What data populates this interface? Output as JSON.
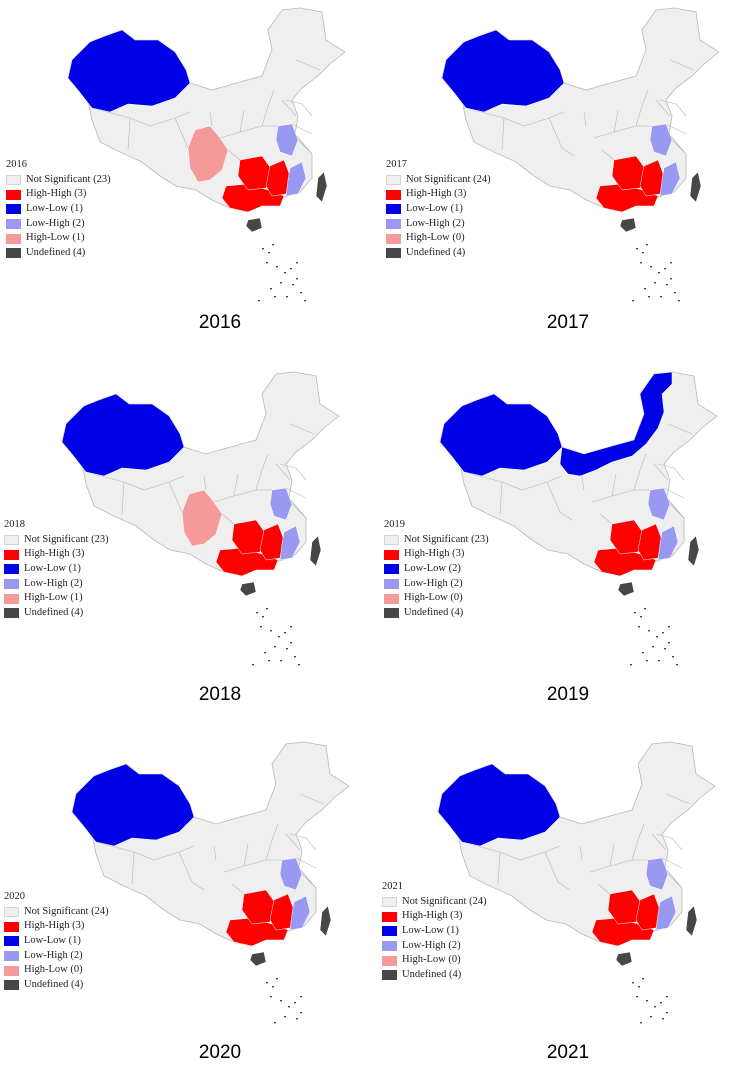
{
  "colors": {
    "not_significant": "#efefef",
    "high_high": "#ff0000",
    "low_low": "#0000e6",
    "low_high": "#9999f2",
    "high_low": "#f59a9a",
    "undefined": "#474747",
    "border": "#b8b8b8"
  },
  "panels": [
    {
      "year": "2016",
      "legend_title": "2016",
      "categories": [
        {
          "label": "Not Significant (23)",
          "key": "not_significant"
        },
        {
          "label": "High-High (3)",
          "key": "high_high"
        },
        {
          "label": "Low-Low (1)",
          "key": "low_low"
        },
        {
          "label": "Low-High (2)",
          "key": "low_high"
        },
        {
          "label": "High-Low (1)",
          "key": "high_low"
        },
        {
          "label": "Undefined (4)",
          "key": "undefined"
        }
      ],
      "caption": "2016",
      "regions": {
        "xinjiang": "low_low",
        "sichuan": "high_low",
        "guangxi": "high_high",
        "hunan": "high_high",
        "jiangxi": "high_high",
        "anhui": "low_high",
        "fujian": "low_high",
        "taiwan": "undefined",
        "hainan": "undefined",
        "south_islands": "undefined"
      }
    },
    {
      "year": "2017",
      "legend_title": "2017",
      "categories": [
        {
          "label": "Not Significant (24)",
          "key": "not_significant"
        },
        {
          "label": "High-High (3)",
          "key": "high_high"
        },
        {
          "label": "Low-Low (1)",
          "key": "low_low"
        },
        {
          "label": "Low-High (2)",
          "key": "low_high"
        },
        {
          "label": "High-Low (0)",
          "key": "high_low"
        },
        {
          "label": "Undefined (4)",
          "key": "undefined"
        }
      ],
      "caption": "2017",
      "regions": {
        "xinjiang": "low_low",
        "guangxi": "high_high",
        "hunan": "high_high",
        "jiangxi": "high_high",
        "anhui": "low_high",
        "fujian": "low_high",
        "taiwan": "undefined",
        "hainan": "undefined",
        "south_islands": "undefined"
      }
    },
    {
      "year": "2018",
      "legend_title": "2018",
      "categories": [
        {
          "label": "Not Significant (23)",
          "key": "not_significant"
        },
        {
          "label": "High-High (3)",
          "key": "high_high"
        },
        {
          "label": "Low-Low (1)",
          "key": "low_low"
        },
        {
          "label": "Low-High (2)",
          "key": "low_high"
        },
        {
          "label": "High-Low (1)",
          "key": "high_low"
        },
        {
          "label": "Undefined (4)",
          "key": "undefined"
        }
      ],
      "caption": "2018",
      "regions": {
        "xinjiang": "low_low",
        "sichuan": "high_low",
        "guangxi": "high_high",
        "hunan": "high_high",
        "jiangxi": "high_high",
        "anhui": "low_high",
        "fujian": "low_high",
        "taiwan": "undefined",
        "hainan": "undefined",
        "south_islands": "undefined"
      }
    },
    {
      "year": "2019",
      "legend_title": "2019",
      "categories": [
        {
          "label": "Not Significant (23)",
          "key": "not_significant"
        },
        {
          "label": "High-High (3)",
          "key": "high_high"
        },
        {
          "label": "Low-Low (2)",
          "key": "low_low"
        },
        {
          "label": "Low-High (2)",
          "key": "low_high"
        },
        {
          "label": "High-Low (0)",
          "key": "high_low"
        },
        {
          "label": "Undefined (4)",
          "key": "undefined"
        }
      ],
      "caption": "2019",
      "regions": {
        "xinjiang": "low_low",
        "inner_mongolia": "low_low",
        "guangxi": "high_high",
        "hunan": "high_high",
        "jiangxi": "high_high",
        "anhui": "low_high",
        "fujian": "low_high",
        "taiwan": "undefined",
        "hainan": "undefined",
        "south_islands": "undefined"
      }
    },
    {
      "year": "2020",
      "legend_title": "2020",
      "categories": [
        {
          "label": "Not Significant (24)",
          "key": "not_significant"
        },
        {
          "label": "High-High (3)",
          "key": "high_high"
        },
        {
          "label": "Low-Low (1)",
          "key": "low_low"
        },
        {
          "label": "Low-High (2)",
          "key": "low_high"
        },
        {
          "label": "High-Low (0)",
          "key": "high_low"
        },
        {
          "label": "Undefined (4)",
          "key": "undefined"
        }
      ],
      "caption": "2020",
      "regions": {
        "xinjiang": "low_low",
        "guangxi": "high_high",
        "hunan": "high_high",
        "jiangxi": "high_high",
        "anhui": "low_high",
        "fujian": "low_high",
        "taiwan": "undefined",
        "hainan": "undefined",
        "south_islands": "undefined"
      }
    },
    {
      "year": "2021",
      "legend_title": "2021",
      "categories": [
        {
          "label": "Not Significant (24)",
          "key": "not_significant"
        },
        {
          "label": "High-High (3)",
          "key": "high_high"
        },
        {
          "label": "Low-Low (1)",
          "key": "low_low"
        },
        {
          "label": "Low-High (2)",
          "key": "low_high"
        },
        {
          "label": "High-Low (0)",
          "key": "high_low"
        },
        {
          "label": "Undefined (4)",
          "key": "undefined"
        }
      ],
      "caption": "2021",
      "regions": {
        "xinjiang": "low_low",
        "guangxi": "high_high",
        "hunan": "high_high",
        "jiangxi": "high_high",
        "anhui": "low_high",
        "fujian": "low_high",
        "taiwan": "undefined",
        "hainan": "undefined",
        "south_islands": "undefined"
      }
    }
  ]
}
